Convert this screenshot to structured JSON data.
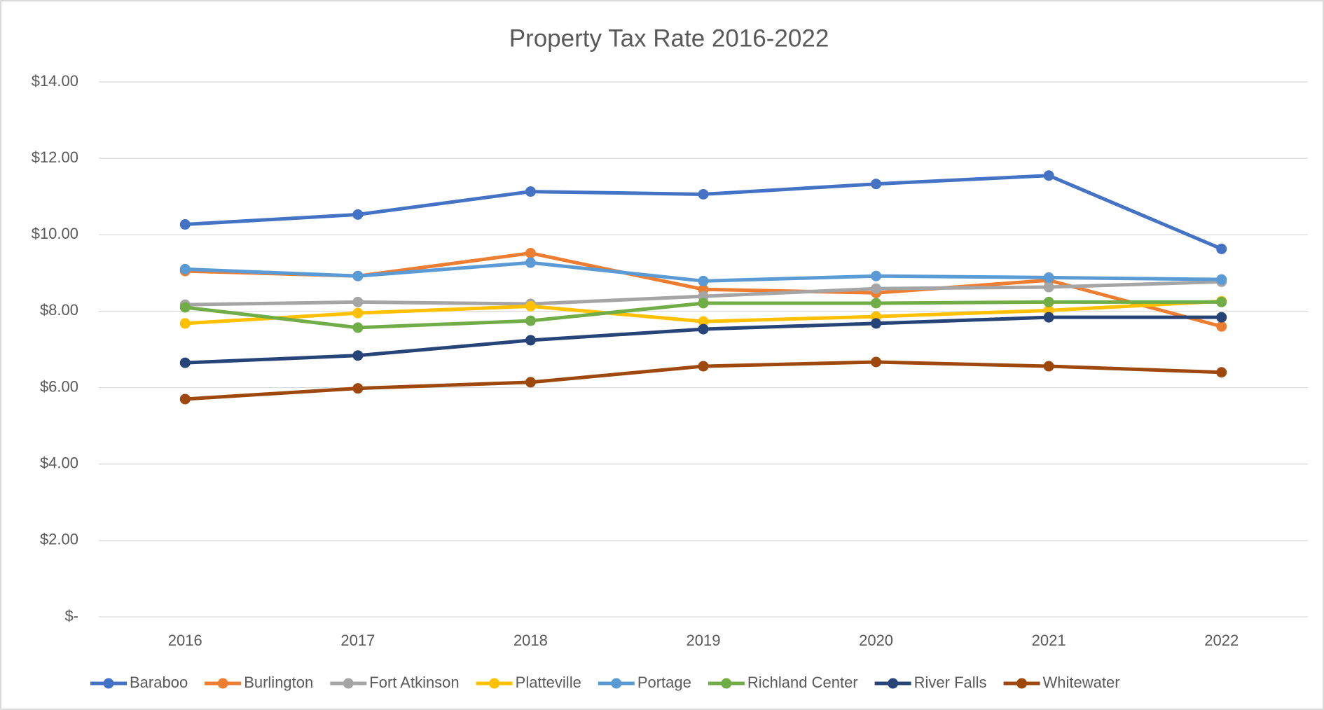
{
  "chart_data": {
    "type": "line",
    "title": "Property Tax Rate 2016-2022",
    "categories": [
      "2016",
      "2017",
      "2018",
      "2019",
      "2020",
      "2021",
      "2022"
    ],
    "series": [
      {
        "name": "Baraboo",
        "color": "#4472c4",
        "values": [
          10.27,
          10.53,
          11.13,
          11.06,
          11.33,
          11.55,
          9.63
        ]
      },
      {
        "name": "Burlington",
        "color": "#ed7d31",
        "values": [
          9.05,
          8.92,
          9.52,
          8.57,
          8.48,
          8.81,
          7.6
        ]
      },
      {
        "name": "Fort Atkinson",
        "color": "#a5a5a5",
        "values": [
          8.17,
          8.24,
          8.19,
          8.39,
          8.59,
          8.63,
          8.77
        ]
      },
      {
        "name": "Platteville",
        "color": "#ffc000",
        "values": [
          7.68,
          7.95,
          8.13,
          7.73,
          7.86,
          8.02,
          8.26
        ]
      },
      {
        "name": "Portage",
        "color": "#5b9bd5",
        "values": [
          9.1,
          8.92,
          9.27,
          8.79,
          8.92,
          8.88,
          8.83
        ]
      },
      {
        "name": "Richland Center",
        "color": "#70ad47",
        "values": [
          8.1,
          7.57,
          7.75,
          8.21,
          8.21,
          8.24,
          8.24
        ]
      },
      {
        "name": "River Falls",
        "color": "#264478",
        "values": [
          6.65,
          6.84,
          7.24,
          7.53,
          7.68,
          7.84,
          7.84
        ]
      },
      {
        "name": "Whitewater",
        "color": "#9e480e",
        "values": [
          5.7,
          5.98,
          6.14,
          6.56,
          6.67,
          6.56,
          6.4
        ]
      }
    ],
    "ylim": [
      0,
      14
    ],
    "yticks": [
      {
        "value": 0,
        "label": "$-"
      },
      {
        "value": 2,
        "label": "$2.00"
      },
      {
        "value": 4,
        "label": "$4.00"
      },
      {
        "value": 6,
        "label": "$6.00"
      },
      {
        "value": 8,
        "label": "$8.00"
      },
      {
        "value": 10,
        "label": "$10.00"
      },
      {
        "value": 12,
        "label": "$12.00"
      },
      {
        "value": 14,
        "label": "$14.00"
      }
    ],
    "grid": true,
    "legend": "bottom"
  }
}
